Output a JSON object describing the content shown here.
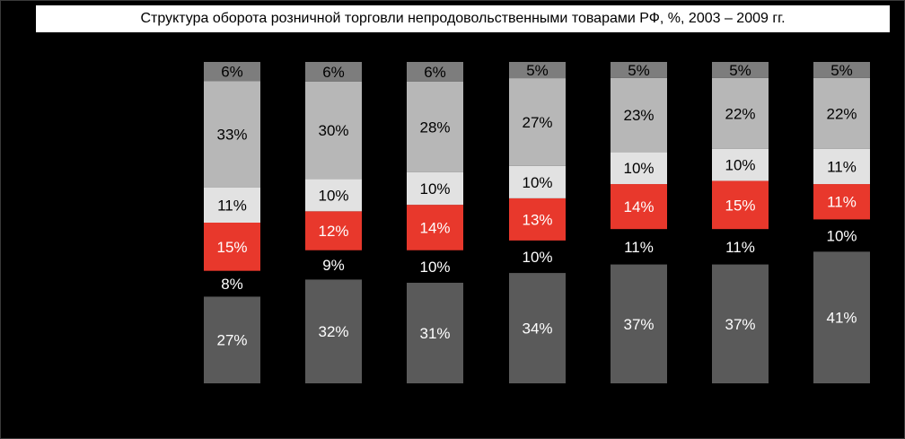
{
  "chart_data": {
    "type": "bar",
    "stacked": true,
    "percent_stacked": true,
    "title": "Структура оборота розничной торговли непродовольственными товарами РФ, %, 2003 – 2009 гг.",
    "categories": [
      "",
      "",
      "",
      "",
      "",
      "",
      ""
    ],
    "series": [
      {
        "values": [
          27,
          32,
          31,
          34,
          37,
          37,
          41
        ],
        "labels": [
          "27%",
          "32%",
          "31%",
          "34%",
          "37%",
          "37%",
          "41%"
        ],
        "color": "#5a5a5a",
        "label_color": "#ffffff"
      },
      {
        "values": [
          8,
          9,
          10,
          10,
          11,
          11,
          10
        ],
        "labels": [
          "8%",
          "9%",
          "10%",
          "10%",
          "11%",
          "11%",
          "10%"
        ],
        "color": "#000000",
        "label_color": "#ffffff"
      },
      {
        "values": [
          15,
          12,
          14,
          13,
          14,
          15,
          11
        ],
        "labels": [
          "15%",
          "12%",
          "14%",
          "13%",
          "14%",
          "15%",
          "11%"
        ],
        "color": "#e8382c",
        "label_color": "#ffffff"
      },
      {
        "values": [
          11,
          10,
          10,
          10,
          10,
          10,
          11
        ],
        "labels": [
          "11%",
          "10%",
          "10%",
          "10%",
          "10%",
          "10%",
          "11%"
        ],
        "color": "#e2e2e2",
        "label_color": "#000000"
      },
      {
        "values": [
          33,
          30,
          28,
          27,
          23,
          22,
          22
        ],
        "labels": [
          "33%",
          "30%",
          "28%",
          "27%",
          "23%",
          "22%",
          "22%"
        ],
        "color": "#b7b7b7",
        "label_color": "#000000"
      },
      {
        "values": [
          6,
          6,
          6,
          5,
          5,
          5,
          5
        ],
        "labels": [
          "6%",
          "6%",
          "6%",
          "5%",
          "5%",
          "5%",
          "5%"
        ],
        "color": "#7d7d7d",
        "label_color": "#000000"
      }
    ],
    "ylim": [
      0,
      100
    ],
    "grid": false,
    "legend": "none"
  }
}
